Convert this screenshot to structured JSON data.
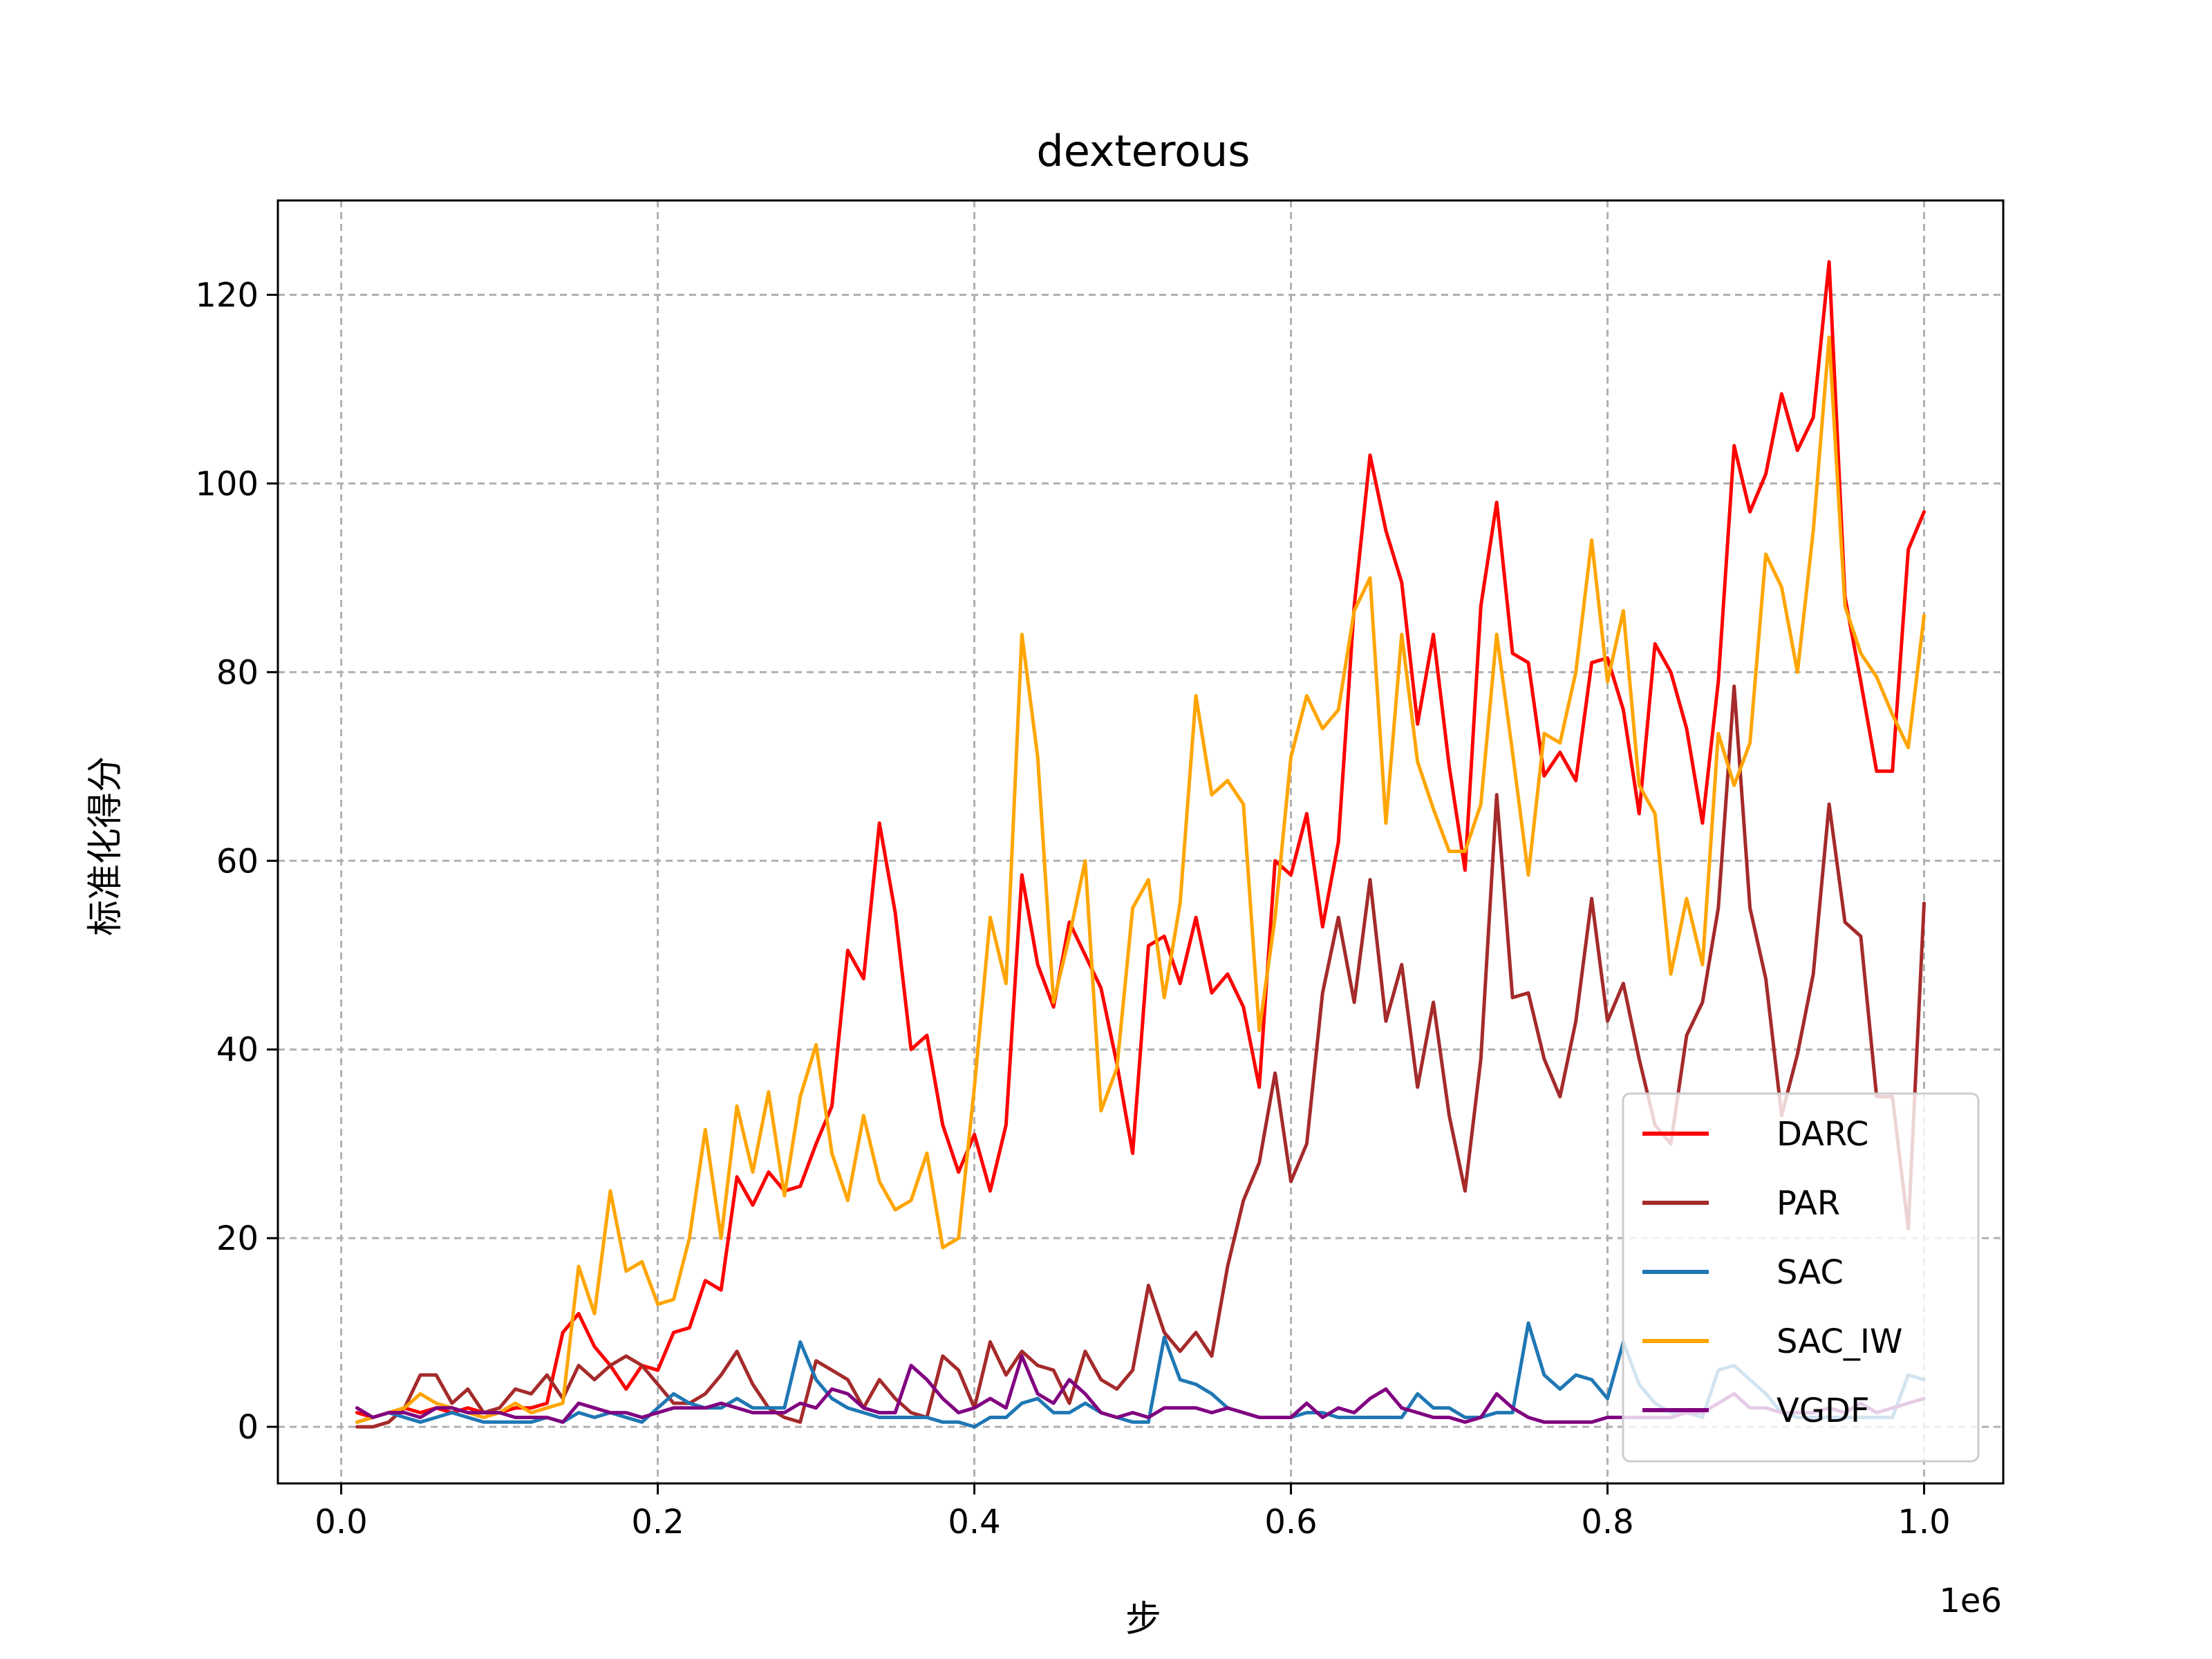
{
  "chart_data": {
    "type": "line",
    "title": "dexterous",
    "xlabel": "步",
    "ylabel": "标准化得分",
    "x_offset_label": "1e6",
    "xlim": [
      -0.04,
      1.05
    ],
    "ylim": [
      -6,
      130
    ],
    "x_ticks": [
      0.0,
      0.2,
      0.4,
      0.6,
      0.8,
      1.0
    ],
    "x_tick_labels": [
      "0.0",
      "0.2",
      "0.4",
      "0.6",
      "0.8",
      "1.0"
    ],
    "y_ticks": [
      0,
      20,
      40,
      60,
      80,
      100,
      120
    ],
    "y_tick_labels": [
      "0",
      "20",
      "40",
      "60",
      "80",
      "100",
      "120"
    ],
    "grid": true,
    "legend_position": "lower-right",
    "x": [
      0.01,
      0.02,
      0.03,
      0.04,
      0.05,
      0.06,
      0.07,
      0.08,
      0.09,
      0.1,
      0.11,
      0.12,
      0.13,
      0.14,
      0.15,
      0.16,
      0.17,
      0.18,
      0.19,
      0.2,
      0.21,
      0.22,
      0.23,
      0.24,
      0.25,
      0.26,
      0.27,
      0.28,
      0.29,
      0.3,
      0.31,
      0.32,
      0.33,
      0.34,
      0.35,
      0.36,
      0.37,
      0.38,
      0.39,
      0.4,
      0.41,
      0.42,
      0.43,
      0.44,
      0.45,
      0.46,
      0.47,
      0.48,
      0.49,
      0.5,
      0.51,
      0.52,
      0.53,
      0.54,
      0.55,
      0.56,
      0.57,
      0.58,
      0.59,
      0.6,
      0.61,
      0.62,
      0.63,
      0.64,
      0.65,
      0.66,
      0.67,
      0.68,
      0.69,
      0.7,
      0.71,
      0.72,
      0.73,
      0.74,
      0.75,
      0.76,
      0.77,
      0.78,
      0.79,
      0.8,
      0.81,
      0.82,
      0.83,
      0.84,
      0.85,
      0.86,
      0.87,
      0.88,
      0.89,
      0.9,
      0.91,
      0.92,
      0.93,
      0.94,
      0.95,
      0.96,
      0.97,
      0.98,
      0.99,
      1.0
    ],
    "series": [
      {
        "name": "DARC",
        "color": "#ff0000",
        "values": [
          1.5,
          1.0,
          1.5,
          2.0,
          1.5,
          2.0,
          1.5,
          2.0,
          1.5,
          1.5,
          2.0,
          2.0,
          2.5,
          10.0,
          12.0,
          8.5,
          6.5,
          4.0,
          6.5,
          6.0,
          10.0,
          10.5,
          15.5,
          14.5,
          26.5,
          23.5,
          27.0,
          25.0,
          25.5,
          30.0,
          34.0,
          50.5,
          47.5,
          64.0,
          54.5,
          40.0,
          41.5,
          32.0,
          27.0,
          31.0,
          25.0,
          32.0,
          58.5,
          49.0,
          44.5,
          53.5,
          50.0,
          46.5,
          38.5,
          29.0,
          51.0,
          52.0,
          47.0,
          54.0,
          46.0,
          48.0,
          44.5,
          36.0,
          60.0,
          58.5,
          65.0,
          53.0,
          62.0,
          87.0,
          103.0,
          95.0,
          89.5,
          74.5,
          84.0,
          70.0,
          59.0,
          87.0,
          98.0,
          82.0,
          81.0,
          69.0,
          71.5,
          68.5,
          81.0,
          81.5,
          76.0,
          65.0,
          83.0,
          80.0,
          74.0,
          64.0,
          79.0,
          104.0,
          97.0,
          101.0,
          109.5,
          103.5,
          107.0,
          123.5,
          88.0,
          79.0,
          69.5,
          69.5,
          93.0,
          97.0
        ]
      },
      {
        "name": "PAR",
        "color": "#a52a2a",
        "values": [
          0.0,
          0.0,
          0.5,
          2.0,
          5.5,
          5.5,
          2.5,
          4.0,
          1.5,
          2.0,
          4.0,
          3.5,
          5.5,
          3.0,
          6.5,
          5.0,
          6.5,
          7.5,
          6.5,
          4.5,
          2.5,
          2.5,
          3.5,
          5.5,
          8.0,
          4.5,
          2.0,
          1.0,
          0.5,
          7.0,
          6.0,
          5.0,
          2.0,
          5.0,
          3.0,
          1.5,
          1.0,
          7.5,
          6.0,
          2.0,
          9.0,
          5.5,
          8.0,
          6.5,
          6.0,
          2.5,
          8.0,
          5.0,
          4.0,
          6.0,
          15.0,
          10.0,
          8.0,
          10.0,
          7.5,
          17.0,
          24.0,
          28.0,
          37.5,
          26.0,
          30.0,
          46.0,
          54.0,
          45.0,
          58.0,
          43.0,
          49.0,
          36.0,
          45.0,
          33.0,
          25.0,
          39.0,
          67.0,
          45.5,
          46.0,
          39.0,
          35.0,
          43.0,
          56.0,
          43.0,
          47.0,
          39.0,
          32.0,
          30.0,
          41.5,
          45.0,
          55.0,
          78.5,
          55.0,
          47.5,
          33.0,
          39.5,
          48.0,
          66.0,
          53.5,
          52.0,
          35.0,
          35.0,
          21.0,
          55.5
        ]
      },
      {
        "name": "SAC",
        "color": "#1f77b4",
        "values": [
          0.5,
          1.0,
          1.5,
          1.0,
          0.5,
          1.0,
          1.5,
          1.0,
          0.5,
          0.5,
          0.5,
          0.5,
          1.0,
          0.5,
          1.5,
          1.0,
          1.5,
          1.0,
          0.5,
          2.0,
          3.5,
          2.5,
          2.0,
          2.0,
          3.0,
          2.0,
          2.0,
          2.0,
          9.0,
          5.0,
          3.0,
          2.0,
          1.5,
          1.0,
          1.0,
          1.0,
          1.0,
          0.5,
          0.5,
          0.0,
          1.0,
          1.0,
          2.5,
          3.0,
          1.5,
          1.5,
          2.5,
          1.5,
          1.0,
          0.5,
          0.5,
          9.5,
          5.0,
          4.5,
          3.5,
          2.0,
          1.5,
          1.0,
          1.0,
          1.0,
          1.5,
          1.5,
          1.0,
          1.0,
          1.0,
          1.0,
          1.0,
          3.5,
          2.0,
          2.0,
          1.0,
          1.0,
          1.5,
          1.5,
          11.0,
          5.5,
          4.0,
          5.5,
          5.0,
          3.0,
          9.0,
          4.5,
          2.5,
          1.5,
          1.5,
          1.0,
          6.0,
          6.5,
          5.0,
          3.5,
          1.5,
          1.0,
          1.0,
          1.0,
          1.0,
          1.0,
          1.0,
          1.0,
          5.5,
          5.0
        ]
      },
      {
        "name": "SAC_IW",
        "color": "#ffa500",
        "values": [
          0.5,
          1.0,
          1.5,
          2.0,
          3.5,
          2.5,
          2.0,
          1.5,
          1.0,
          1.5,
          2.5,
          1.5,
          2.0,
          2.5,
          17.0,
          12.0,
          25.0,
          16.5,
          17.5,
          13.0,
          13.5,
          20.0,
          31.5,
          20.0,
          34.0,
          27.0,
          35.5,
          24.5,
          35.0,
          40.5,
          29.0,
          24.0,
          33.0,
          26.0,
          23.0,
          24.0,
          29.0,
          19.0,
          20.0,
          36.0,
          54.0,
          47.0,
          84.0,
          71.0,
          45.0,
          52.0,
          60.0,
          33.5,
          38.0,
          55.0,
          58.0,
          45.5,
          55.5,
          77.5,
          67.0,
          68.5,
          66.0,
          42.0,
          54.0,
          71.0,
          77.5,
          74.0,
          76.0,
          86.5,
          90.0,
          64.0,
          84.0,
          70.5,
          65.5,
          61.0,
          61.0,
          66.0,
          84.0,
          71.5,
          58.5,
          73.5,
          72.5,
          80.0,
          94.0,
          79.0,
          86.5,
          68.0,
          65.0,
          48.0,
          56.0,
          49.0,
          73.5,
          68.0,
          72.5,
          92.5,
          89.0,
          80.0,
          95.0,
          115.5,
          87.0,
          82.0,
          79.5,
          75.5,
          72.0,
          86.0
        ]
      },
      {
        "name": "VGDF",
        "color": "#800080",
        "values": [
          2.0,
          1.0,
          1.5,
          1.5,
          1.0,
          2.0,
          2.0,
          1.5,
          1.5,
          1.5,
          1.0,
          1.0,
          1.0,
          0.5,
          2.5,
          2.0,
          1.5,
          1.5,
          1.0,
          1.5,
          2.0,
          2.0,
          2.0,
          2.5,
          2.0,
          1.5,
          1.5,
          1.5,
          2.5,
          2.0,
          4.0,
          3.5,
          2.0,
          1.5,
          1.5,
          6.5,
          5.0,
          3.0,
          1.5,
          2.0,
          3.0,
          2.0,
          7.5,
          3.5,
          2.5,
          5.0,
          3.5,
          1.5,
          1.0,
          1.5,
          1.0,
          2.0,
          2.0,
          2.0,
          1.5,
          2.0,
          1.5,
          1.0,
          1.0,
          1.0,
          2.5,
          1.0,
          2.0,
          1.5,
          3.0,
          4.0,
          2.0,
          1.5,
          1.0,
          1.0,
          0.5,
          1.0,
          3.5,
          2.0,
          1.0,
          0.5,
          0.5,
          0.5,
          0.5,
          1.0,
          1.0,
          1.0,
          1.0,
          1.0,
          1.5,
          1.5,
          2.5,
          3.5,
          2.0,
          2.0,
          1.5,
          1.5,
          1.5,
          2.0,
          1.5,
          2.5,
          1.5,
          2.0,
          2.5,
          3.0
        ]
      }
    ]
  }
}
